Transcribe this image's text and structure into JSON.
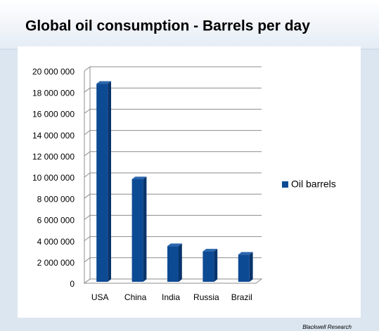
{
  "chart_data": {
    "type": "bar",
    "title": "Global oil consumption - Barrels per day",
    "categories": [
      "USA",
      "China",
      "India",
      "Russia",
      "Brazil"
    ],
    "series": [
      {
        "name": "Oil barrels",
        "color": "#0d4a94",
        "values": [
          18800000,
          9800000,
          3500000,
          3000000,
          2700000
        ]
      }
    ],
    "ylim": [
      0,
      20000000
    ],
    "yticks": [
      0,
      {
        "value": 2000000,
        "label": "2 000 000"
      },
      {
        "value": 4000000,
        "label": "4 000 000"
      },
      {
        "value": 6000000,
        "label": "6 000 000"
      },
      {
        "value": 8000000,
        "label": "8 000 000"
      },
      {
        "value": 10000000,
        "label": "10 000 000"
      },
      {
        "value": 12000000,
        "label": "12 000 000"
      },
      {
        "value": 14000000,
        "label": "14 000 000"
      },
      {
        "value": 16000000,
        "label": "16 000 000"
      },
      {
        "value": 18000000,
        "label": "18 000 000"
      },
      {
        "value": 20000000,
        "label": "20 000 000"
      }
    ],
    "grid": true,
    "legend": "right",
    "source": "Blackwell  Research"
  }
}
